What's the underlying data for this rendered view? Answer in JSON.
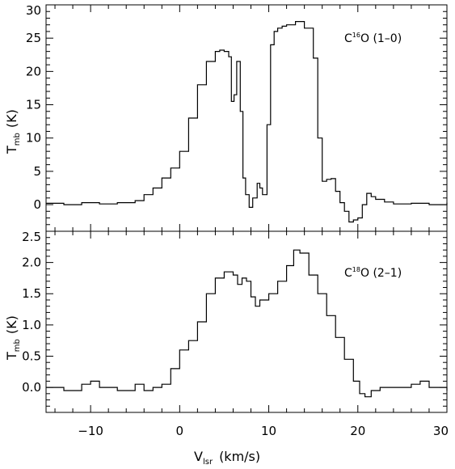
{
  "chart_data": [
    {
      "type": "line",
      "line_label": "C",
      "line_label_sup": "16",
      "line_label_rest": "O (1–0)",
      "ylabel_main": "T",
      "ylabel_sub": "mb",
      "ylabel_unit": "(K)",
      "xlim": [
        -15,
        30
      ],
      "ylim": [
        -4,
        30
      ],
      "yticks": [
        0,
        5,
        10,
        15,
        20,
        25,
        30
      ],
      "ytick_labels": [
        "0",
        "5",
        "10",
        "15",
        "20",
        "25",
        "30"
      ],
      "series": [
        {
          "x": [
            -15,
            -13,
            -11,
            -9,
            -7,
            -5,
            -4,
            -3,
            -2,
            -1,
            0,
            1,
            2,
            3,
            4,
            4.5,
            5,
            5.5,
            5.8,
            6.1,
            6.4,
            6.8,
            7.1,
            7.4,
            7.8,
            8.2,
            8.7,
            9.0,
            9.3,
            9.8,
            10.2,
            10.6,
            11.0,
            11.5,
            12,
            13,
            14,
            15,
            15.5,
            16,
            16.5,
            17,
            17.5,
            18,
            18.5,
            19,
            19.5,
            20,
            20.5,
            21,
            21.5,
            22,
            23,
            24,
            26,
            28,
            30
          ],
          "y": [
            0.2,
            0.0,
            0.3,
            0.1,
            0.3,
            0.6,
            1.5,
            2.5,
            4.0,
            5.5,
            8.0,
            13.0,
            18.0,
            21.5,
            23.0,
            23.2,
            23.0,
            22.2,
            15.5,
            16.5,
            21.5,
            14.0,
            4.0,
            1.5,
            -0.4,
            1.0,
            3.2,
            2.5,
            1.5,
            12.0,
            24.0,
            26.0,
            26.5,
            26.8,
            27.0,
            27.5,
            26.5,
            22.0,
            10.0,
            3.5,
            3.8,
            3.9,
            2.0,
            0.3,
            -1.0,
            -2.6,
            -2.3,
            -2.0,
            0.0,
            1.7,
            1.2,
            0.8,
            0.4,
            0.1,
            0.2,
            0.0,
            0.3
          ]
        }
      ]
    },
    {
      "type": "line",
      "line_label": "C",
      "line_label_sup": "18",
      "line_label_rest": "O (2–1)",
      "ylabel_main": "T",
      "ylabel_sub": "mb",
      "ylabel_unit": "(K)",
      "xlabel_main": "V",
      "xlabel_sub": "lsr",
      "xlabel_unit": "(km/s)",
      "xlim": [
        -15,
        30
      ],
      "ylim": [
        -0.4,
        2.5
      ],
      "xticks": [
        -10,
        0,
        10,
        20,
        30
      ],
      "xtick_labels": [
        "−10",
        "0",
        "10",
        "20",
        "30"
      ],
      "yticks": [
        0.0,
        0.5,
        1.0,
        1.5,
        2.0,
        2.5
      ],
      "ytick_labels": [
        "0.0",
        "0.5",
        "1.0",
        "1.5",
        "2.0",
        "2.5"
      ],
      "series": [
        {
          "x": [
            -15,
            -13,
            -11,
            -10,
            -9,
            -7,
            -5,
            -4,
            -3,
            -2,
            -1,
            0,
            1,
            2,
            3,
            4,
            5,
            6,
            6.5,
            7,
            7.5,
            8,
            8.5,
            9,
            10,
            11,
            12,
            12.8,
            13.5,
            14.5,
            15.5,
            16.5,
            17.5,
            18.5,
            19.5,
            20.2,
            20.8,
            21.5,
            22.5,
            24,
            26,
            27,
            28,
            30
          ],
          "y": [
            0.0,
            -0.05,
            0.05,
            0.1,
            0.0,
            -0.05,
            0.05,
            -0.05,
            0.0,
            0.05,
            0.3,
            0.6,
            0.75,
            1.05,
            1.5,
            1.75,
            1.85,
            1.8,
            1.65,
            1.75,
            1.7,
            1.45,
            1.3,
            1.4,
            1.5,
            1.7,
            1.95,
            2.2,
            2.15,
            1.8,
            1.5,
            1.15,
            0.8,
            0.45,
            0.1,
            -0.1,
            -0.15,
            -0.05,
            0.0,
            0.0,
            0.05,
            0.1,
            0.0,
            -0.05
          ]
        }
      ]
    }
  ]
}
